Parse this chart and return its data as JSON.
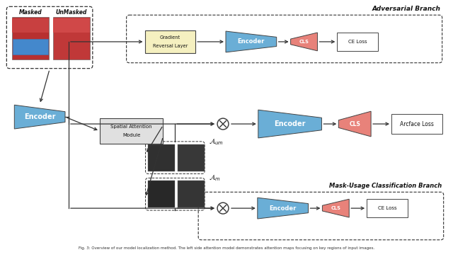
{
  "bg_color": "#ffffff",
  "encoder_color": "#6aaed6",
  "cls_color": "#e8827a",
  "grad_rev_color": "#f5f0c0",
  "sam_color": "#e0e0e0",
  "text_color": "#111111",
  "caption": "Fig. 3: Overview of our model localization method. The left side attention model demonstrates attention maps focusing on key regions of input images.",
  "adv_label": "Adversarial Branch",
  "mub_label": "Mask-Usage Classification Branch",
  "masked_label": "Masked",
  "unmasked_label": "UnMasked"
}
